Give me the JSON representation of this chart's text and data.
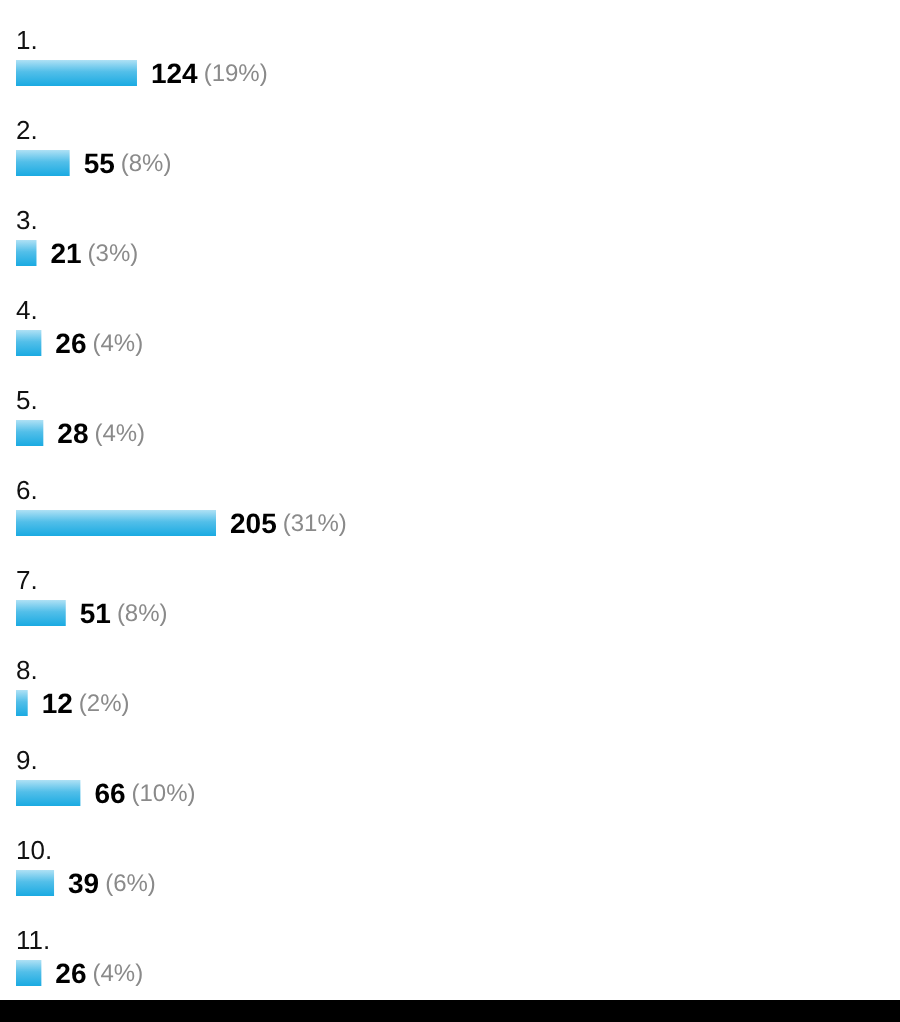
{
  "chart_data": {
    "type": "bar",
    "orientation": "horizontal",
    "categories": [
      "1.",
      "2.",
      "3.",
      "4.",
      "5.",
      "6.",
      "7.",
      "8.",
      "9.",
      "10.",
      "11."
    ],
    "values": [
      124,
      55,
      21,
      26,
      28,
      205,
      51,
      12,
      66,
      39,
      26
    ],
    "color": "#1aaae2",
    "value_labels": [
      "124 (19%)",
      "55 (8%)",
      "21 (3%)",
      "26 (4%)",
      "28 (4%)",
      "205 (31%)",
      "51 (8%)",
      "12 (2%)",
      "66 (10%)",
      "39 (6%)",
      "26 (4%)"
    ]
  }
}
